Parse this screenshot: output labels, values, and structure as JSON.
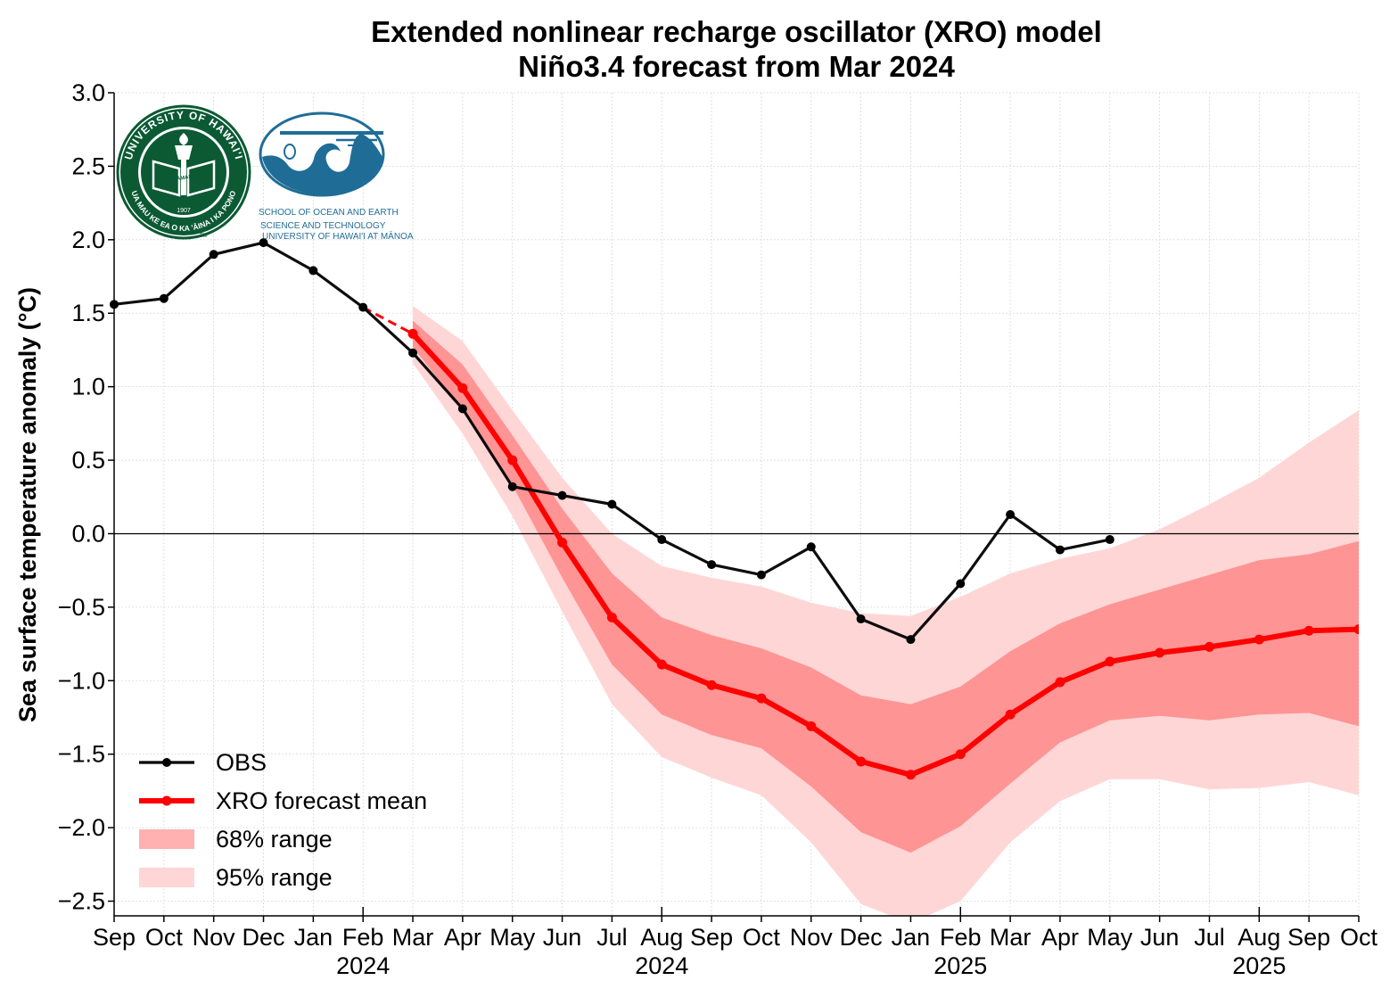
{
  "chart_data": {
    "type": "line",
    "title": "Extended nonlinear recharge oscillator (XRO) model",
    "subtitle": "Niño3.4 forecast from Mar 2024",
    "ylabel": "Sea surface temperature anomaly (°C)",
    "ylim": [
      -2.6,
      3.0
    ],
    "yticks": [
      "3.0",
      "2.5",
      "2.0",
      "1.5",
      "1.0",
      "0.5",
      "0.0",
      "−0.5",
      "−1.0",
      "−1.5",
      "−2.0",
      "−2.5"
    ],
    "ytick_values": [
      3.0,
      2.5,
      2.0,
      1.5,
      1.0,
      0.5,
      0.0,
      -0.5,
      -1.0,
      -1.5,
      -2.0,
      -2.5
    ],
    "x_labels": [
      "Sep",
      "Oct",
      "Nov",
      "Dec",
      "Jan",
      "Feb",
      "Mar",
      "Apr",
      "May",
      "Jun",
      "Jul",
      "Aug",
      "Sep",
      "Oct",
      "Nov",
      "Dec",
      "Jan",
      "Feb",
      "Mar",
      "Apr",
      "May",
      "Jun",
      "Jul",
      "Aug",
      "Sep",
      "Oct"
    ],
    "year_labels": [
      {
        "text": "2024",
        "index": 5
      },
      {
        "text": "2024",
        "index": 11
      },
      {
        "text": "2025",
        "index": 17
      },
      {
        "text": "2025",
        "index": 23
      }
    ],
    "grid": true,
    "zero_line": true,
    "legend_position": "bottom-left",
    "series": [
      {
        "name": "OBS",
        "color": "#000000",
        "x": [
          0,
          1,
          2,
          3,
          4,
          5,
          6,
          7,
          8,
          9,
          10,
          11,
          12,
          13,
          14,
          15,
          16,
          17,
          18,
          19,
          20
        ],
        "values": [
          1.56,
          1.6,
          1.9,
          1.98,
          1.79,
          1.54,
          1.23,
          0.85,
          0.32,
          0.26,
          0.2,
          -0.04,
          -0.21,
          -0.28,
          -0.09,
          -0.58,
          -0.72,
          -0.34,
          0.13,
          -0.11,
          -0.04
        ]
      },
      {
        "name": "XRO forecast mean",
        "color": "#ff0000",
        "x": [
          6,
          7,
          8,
          9,
          10,
          11,
          12,
          13,
          14,
          15,
          16,
          17,
          18,
          19,
          20,
          21,
          22,
          23,
          24,
          25
        ],
        "values": [
          1.36,
          0.99,
          0.5,
          -0.06,
          -0.57,
          -0.89,
          -1.03,
          -1.12,
          -1.31,
          -1.55,
          -1.64,
          -1.5,
          -1.23,
          -1.01,
          -0.87,
          -0.81,
          -0.77,
          -0.72,
          -0.66,
          -0.65
        ]
      },
      {
        "name": "68% range",
        "color": "#ff9494",
        "x": [
          6,
          7,
          8,
          9,
          10,
          11,
          12,
          13,
          14,
          15,
          16,
          17,
          18,
          19,
          20,
          21,
          22,
          23,
          24,
          25
        ],
        "upper": [
          1.45,
          1.15,
          0.67,
          0.17,
          -0.27,
          -0.57,
          -0.69,
          -0.78,
          -0.91,
          -1.1,
          -1.16,
          -1.04,
          -0.8,
          -0.61,
          -0.48,
          -0.38,
          -0.28,
          -0.18,
          -0.14,
          -0.05
        ],
        "lower": [
          1.27,
          0.84,
          0.33,
          -0.3,
          -0.89,
          -1.23,
          -1.37,
          -1.46,
          -1.72,
          -2.03,
          -2.17,
          -1.99,
          -1.7,
          -1.42,
          -1.27,
          -1.24,
          -1.27,
          -1.23,
          -1.22,
          -1.31
        ]
      },
      {
        "name": "95% range",
        "color": "#ffd6d6",
        "x": [
          6,
          7,
          8,
          9,
          10,
          11,
          12,
          13,
          14,
          15,
          16,
          17,
          18,
          19,
          20,
          21,
          22,
          23,
          24,
          25
        ],
        "upper": [
          1.55,
          1.31,
          0.84,
          0.38,
          0.0,
          -0.22,
          -0.3,
          -0.36,
          -0.47,
          -0.54,
          -0.56,
          -0.43,
          -0.27,
          -0.17,
          -0.1,
          0.03,
          0.2,
          0.38,
          0.62,
          0.84
        ],
        "lower": [
          1.16,
          0.68,
          0.12,
          -0.53,
          -1.16,
          -1.52,
          -1.66,
          -1.78,
          -2.1,
          -2.52,
          -2.65,
          -2.5,
          -2.1,
          -1.82,
          -1.67,
          -1.67,
          -1.74,
          -1.73,
          -1.69,
          -1.78
        ]
      }
    ],
    "connector": {
      "from": [
        5,
        1.54
      ],
      "to": [
        6,
        1.36
      ],
      "style": "dashed",
      "color": "#ff0000"
    }
  },
  "logos": {
    "uh": {
      "ring_text_top": "UNIVERSITY OF HAWAI'I",
      "ring_text_bottom": "UA MAU KE EA O KA 'ĀINA I KA PONO",
      "motto": "MĀLAMALAMA",
      "year": "1907",
      "tm": "TM",
      "color": "#0b5a34"
    },
    "soest": {
      "line1": "SCHOOL OF OCEAN AND EARTH",
      "line2": "SCIENCE AND TECHNOLOGY",
      "line3": "UNIVERSITY OF HAWAI'I AT MĀNOA",
      "color": "#1f6d97"
    }
  }
}
